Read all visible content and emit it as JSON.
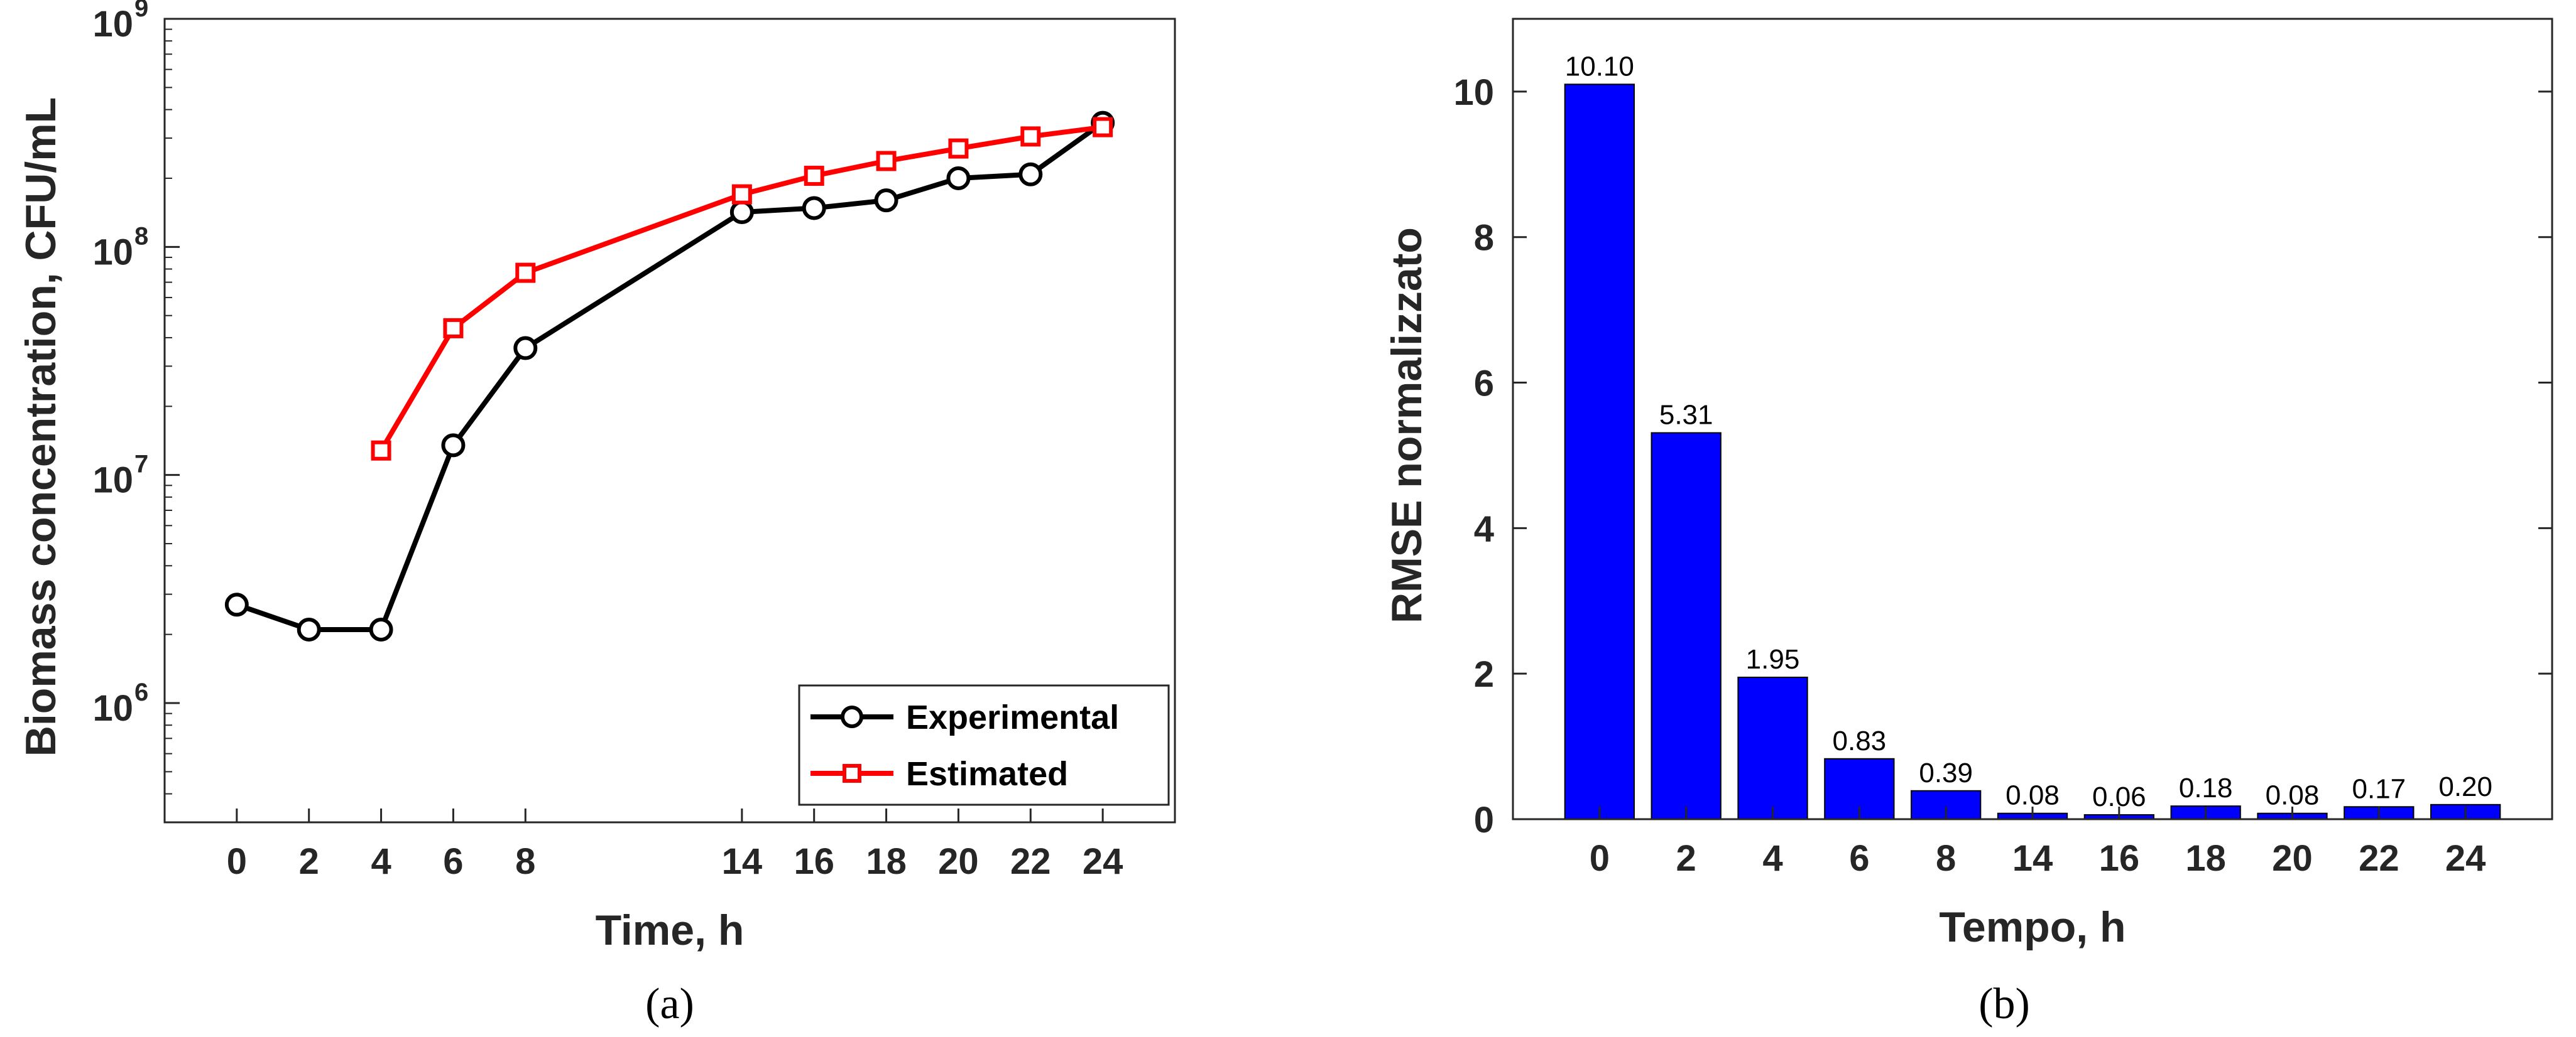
{
  "chart_data": [
    {
      "type": "line",
      "panel_label": "(a)",
      "title": "",
      "xlabel": "Time, h",
      "ylabel": "Biomass concentration, CFU/mL",
      "yscale": "log",
      "xlim": [
        -2,
        26
      ],
      "ylim": [
        300000,
        1000000000
      ],
      "x_ticks": [
        0,
        2,
        4,
        6,
        8,
        14,
        16,
        18,
        20,
        22,
        24
      ],
      "y_ticks": [
        {
          "value": 1000000,
          "mantissa": "10",
          "exponent": "6"
        },
        {
          "value": 10000000,
          "mantissa": "10",
          "exponent": "7"
        },
        {
          "value": 100000000,
          "mantissa": "10",
          "exponent": "8"
        },
        {
          "value": 1000000000,
          "mantissa": "10",
          "exponent": "9"
        }
      ],
      "legend_position": "bottom-right",
      "series": [
        {
          "name": "Experimental",
          "color": "#000000",
          "marker": "circle",
          "x": [
            0,
            2,
            4,
            6,
            8,
            14,
            16,
            18,
            20,
            22,
            24
          ],
          "y": [
            2700000,
            2100000,
            2100000,
            13500000,
            36000000,
            142000000,
            148000000,
            160000000,
            200000000,
            208000000,
            350000000
          ]
        },
        {
          "name": "Estimated",
          "color": "#ff0000",
          "marker": "square",
          "x": [
            4,
            6,
            8,
            14,
            16,
            18,
            20,
            22,
            24
          ],
          "y": [
            12800000,
            44000000,
            77000000,
            170000000,
            205000000,
            238000000,
            270000000,
            305000000,
            335000000
          ]
        }
      ]
    },
    {
      "type": "bar",
      "panel_label": "(b)",
      "title": "",
      "xlabel": "Tempo, h",
      "ylabel": "RMSE normalizzato",
      "ylim": [
        0,
        11
      ],
      "y_ticks": [
        0,
        2,
        4,
        6,
        8,
        10
      ],
      "categories": [
        "0",
        "2",
        "4",
        "6",
        "8",
        "14",
        "16",
        "18",
        "20",
        "22",
        "24"
      ],
      "values": [
        10.1,
        5.31,
        1.95,
        0.83,
        0.39,
        0.08,
        0.06,
        0.18,
        0.08,
        0.17,
        0.2
      ],
      "data_labels": [
        "10.10",
        "5.31",
        "1.95",
        "0.83",
        "0.39",
        "0.08",
        "0.06",
        "0.18",
        "0.08",
        "0.17",
        "0.20"
      ],
      "bar_color": "#0000ff"
    }
  ]
}
